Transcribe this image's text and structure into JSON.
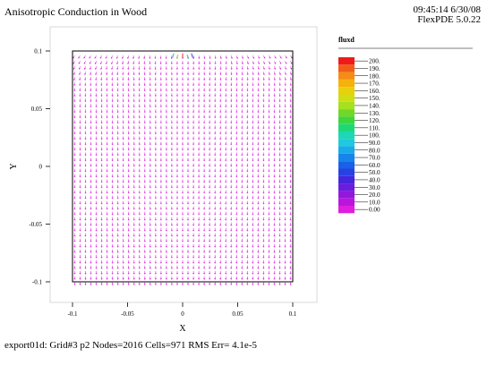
{
  "header": {
    "title": "Anisotropic Conduction in Wood",
    "time": "09:45:14 6/30/08",
    "version": "FlexPDE 5.0.22"
  },
  "footer": {
    "status": "export01d:  Grid#3  p2  Nodes=2016 Cells=971 RMS Err= 4.1e-5"
  },
  "chart_data": {
    "type": "vector-field",
    "title": "Anisotropic Conduction in Wood",
    "xlabel": "X",
    "ylabel": "Y",
    "xlim": [
      -0.1,
      0.1
    ],
    "ylim": [
      -0.1,
      0.1
    ],
    "x_ticks": [
      "-0.1",
      "-0.05",
      "0",
      "0.05",
      "0.1"
    ],
    "y_ticks": [
      "0.1",
      "0.05",
      "0",
      "-0.05",
      "-0.1"
    ],
    "x_tick_values": [
      -0.1,
      -0.05,
      0,
      0.05,
      0.1
    ],
    "y_tick_values": [
      0.1,
      0.05,
      0,
      -0.05,
      -0.1
    ],
    "legend": {
      "variable": "fluxd",
      "placement": "right",
      "labels": [
        "200.",
        "190.",
        "180.",
        "170.",
        "160.",
        "150.",
        "140.",
        "130.",
        "120.",
        "110.",
        "100.",
        "90.0",
        "80.0",
        "70.0",
        "60.0",
        "50.0",
        "40.0",
        "30.0",
        "20.0",
        "10.0",
        "0.00"
      ],
      "colors": [
        "#ee1b1b",
        "#f25c1a",
        "#f58c14",
        "#f6b10c",
        "#e9cf0c",
        "#cfdd14",
        "#a6e01e",
        "#6fd829",
        "#3ed63e",
        "#1ed878",
        "#1dd7b5",
        "#1fc9df",
        "#1aa9ea",
        "#1784ea",
        "#1861e8",
        "#2841e3",
        "#4426de",
        "#6a1ddc",
        "#9218dc",
        "#bb15dd",
        "#e01ee0"
      ]
    },
    "grid": false,
    "vector_color": "#e01ee0",
    "peak_color": "#ee1b1b",
    "peak_location": [
      0,
      0.1
    ]
  }
}
